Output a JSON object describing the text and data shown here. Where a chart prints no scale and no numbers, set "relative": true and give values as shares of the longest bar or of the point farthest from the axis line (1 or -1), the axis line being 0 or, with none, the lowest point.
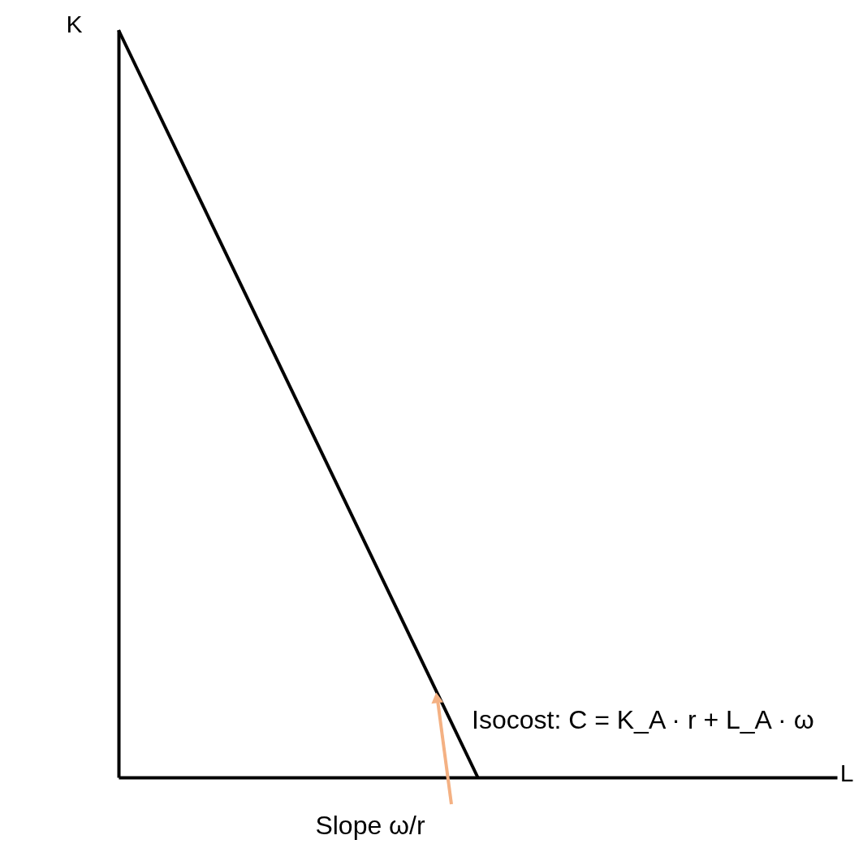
{
  "chart_data": {
    "type": "line",
    "relative": true,
    "xlabel": "L",
    "ylabel": "K",
    "categories": [
      null,
      null,
      null
    ],
    "series": [
      {
        "color": "#000000",
        "values": [
          1,
          0,
          null
        ]
      }
    ],
    "annotations": [
      "Isocost: C = K_A · r + L_A · ω",
      "Slope ω/r"
    ],
    "tick_labels": false
  }
}
